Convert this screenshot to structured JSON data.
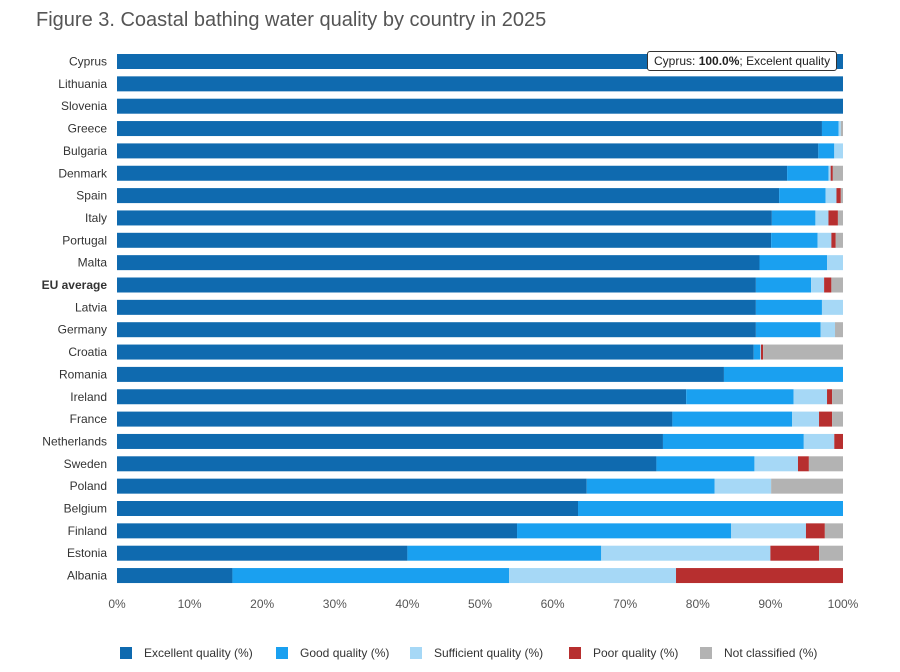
{
  "title": "Figure 3. Coastal bathing water quality by country in 2025",
  "tooltip": {
    "country": "Cyprus",
    "value": "100.0%",
    "category": "Excelent quality"
  },
  "colors": {
    "excellent": "#0f6aaf",
    "good": "#1aa0f0",
    "sufficient": "#a6d8f6",
    "poor": "#b72f2f",
    "not_classified": "#b3b3b3"
  },
  "legend": [
    {
      "label": "Excellent quality (%)",
      "color": "#0f6aaf"
    },
    {
      "label": "Good quality (%)",
      "color": "#1aa0f0"
    },
    {
      "label": "Sufficient quality (%)",
      "color": "#a6d8f6"
    },
    {
      "label": "Poor quality (%)",
      "color": "#b72f2f"
    },
    {
      "label": "Not classified (%)",
      "color": "#b3b3b3"
    }
  ],
  "chart_data": {
    "type": "bar",
    "orientation": "horizontal",
    "stacked": true,
    "title": "Figure 3. Coastal bathing water quality by country in 2025",
    "xlim": [
      0,
      100
    ],
    "x_ticks": [
      "0%",
      "10%",
      "20%",
      "30%",
      "40%",
      "50%",
      "60%",
      "70%",
      "80%",
      "90%",
      "100%"
    ],
    "grid": false,
    "legend_position": "bottom",
    "categories": [
      "Cyprus",
      "Lithuania",
      "Slovenia",
      "Greece",
      "Bulgaria",
      "Denmark",
      "Spain",
      "Italy",
      "Portugal",
      "Malta",
      "EU average",
      "Latvia",
      "Germany",
      "Croatia",
      "Romania",
      "Ireland",
      "France",
      "Netherlands",
      "Sweden",
      "Poland",
      "Belgium",
      "Finland",
      "Estonia",
      "Albania"
    ],
    "bold_categories": [
      "EU average"
    ],
    "series": [
      {
        "name": "Excellent quality (%)",
        "values": [
          100.0,
          100.0,
          100.0,
          97.1,
          96.6,
          92.3,
          91.2,
          90.2,
          90.1,
          88.5,
          88.0,
          88.0,
          88.0,
          87.7,
          83.6,
          78.4,
          76.5,
          75.2,
          74.3,
          64.7,
          63.5,
          55.1,
          40.0,
          15.9
        ]
      },
      {
        "name": "Good quality (%)",
        "values": [
          0.0,
          0.0,
          0.0,
          2.3,
          2.2,
          5.7,
          6.4,
          6.0,
          6.4,
          9.3,
          7.6,
          9.1,
          8.9,
          0.9,
          16.4,
          14.8,
          16.5,
          19.4,
          13.5,
          17.6,
          36.5,
          29.5,
          26.7,
          38.1
        ]
      },
      {
        "name": "Sufficient quality (%)",
        "values": [
          0.0,
          0.0,
          0.0,
          0.3,
          1.2,
          0.3,
          1.5,
          1.8,
          1.9,
          2.2,
          1.8,
          2.9,
          2.0,
          0.1,
          0.0,
          4.6,
          3.7,
          4.2,
          6.0,
          7.8,
          0.0,
          10.3,
          23.3,
          23.0
        ]
      },
      {
        "name": "Poor quality (%)",
        "values": [
          0.0,
          0.0,
          0.0,
          0.0,
          0.0,
          0.3,
          0.6,
          1.3,
          0.6,
          0.0,
          1.0,
          0.0,
          0.0,
          0.3,
          0.0,
          0.7,
          1.8,
          1.2,
          1.5,
          0.0,
          0.0,
          2.6,
          6.7,
          23.0
        ]
      },
      {
        "name": "Not classified (%)",
        "values": [
          0.0,
          0.0,
          0.0,
          0.3,
          0.0,
          1.4,
          0.3,
          0.7,
          1.0,
          0.0,
          1.6,
          0.0,
          1.1,
          11.0,
          0.0,
          1.5,
          1.5,
          0.0,
          4.7,
          9.9,
          0.0,
          2.5,
          3.3,
          0.0
        ]
      }
    ]
  }
}
